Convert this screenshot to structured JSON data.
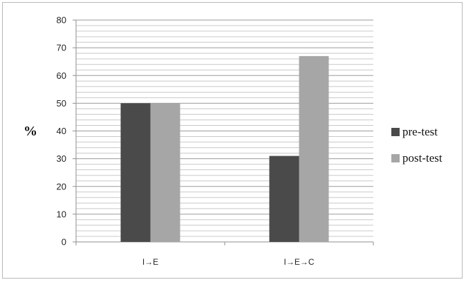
{
  "chart_data": {
    "type": "bar",
    "categories": [
      "I→E",
      "I→E→C"
    ],
    "series": [
      {
        "name": "pre-test",
        "values": [
          50,
          31
        ],
        "color": "#4a4a4a"
      },
      {
        "name": "post-test",
        "values": [
          50,
          67
        ],
        "color": "#a6a6a6"
      }
    ],
    "ylabel": "%",
    "ylim": [
      0,
      80
    ],
    "yticks": [
      0,
      10,
      20,
      30,
      40,
      50,
      60,
      70,
      80
    ],
    "minor_grid_step": 2,
    "grid": true,
    "legend": "right"
  }
}
